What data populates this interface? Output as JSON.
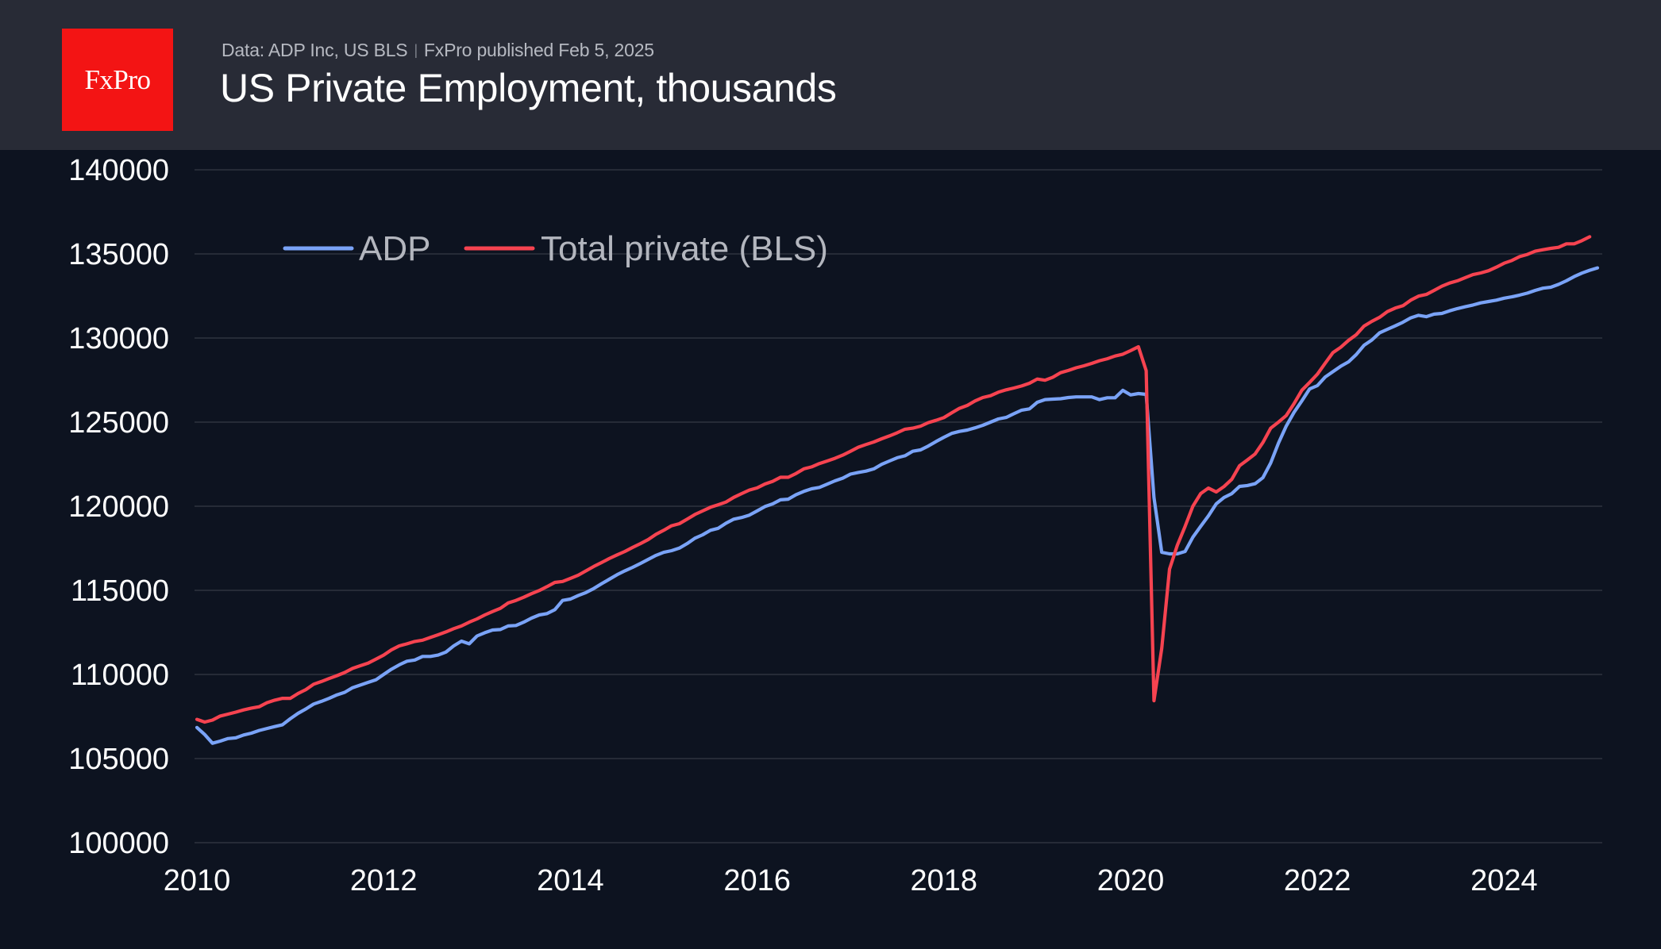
{
  "header": {
    "logo_text": "FxPro",
    "source": "Data: ADP Inc, US BLS",
    "separator": "|",
    "published": "FxPro published Feb 5, 2025",
    "title": "US Private Employment, thousands"
  },
  "colors": {
    "background": "#0d1320",
    "header_background": "#282b36",
    "logo_red": "#f31414",
    "adp": "#7aa3f7",
    "bls": "#f64350",
    "grid": "#262b37"
  },
  "chart_data": {
    "type": "line",
    "title": "US Private Employment, thousands",
    "xlabel": "",
    "ylabel": "",
    "x_start": "2010-01",
    "x_frequency": "monthly",
    "xlim": [
      2010.0,
      2025.1
    ],
    "ylim": [
      100000,
      140000
    ],
    "yticks": [
      100000,
      105000,
      110000,
      115000,
      120000,
      125000,
      130000,
      135000,
      140000
    ],
    "ytick_labels": [
      "100000",
      "105000",
      "110000",
      "115000",
      "120000",
      "125000",
      "130000",
      "135000",
      "140000"
    ],
    "xticks": [
      2010,
      2012,
      2014,
      2016,
      2018,
      2020,
      2022,
      2024
    ],
    "xtick_labels": [
      "2010",
      "2012",
      "2014",
      "2016",
      "2018",
      "2020",
      "2022",
      "2024"
    ],
    "grid": "horizontal",
    "legend_position": "top-left",
    "series": [
      {
        "name": "ADP",
        "color": "#7aa3f7",
        "values": [
          106850,
          106430,
          105910,
          106040,
          106190,
          106230,
          106400,
          106510,
          106670,
          106790,
          106900,
          107010,
          107370,
          107690,
          107950,
          108240,
          108400,
          108580,
          108790,
          108940,
          109210,
          109370,
          109530,
          109680,
          110000,
          110310,
          110570,
          110790,
          110860,
          111070,
          111070,
          111150,
          111330,
          111700,
          111980,
          111820,
          112290,
          112480,
          112640,
          112670,
          112880,
          112910,
          113110,
          113350,
          113540,
          113620,
          113850,
          114400,
          114480,
          114690,
          114870,
          115110,
          115390,
          115660,
          115930,
          116160,
          116370,
          116600,
          116840,
          117080,
          117260,
          117360,
          117510,
          117780,
          118100,
          118300,
          118570,
          118690,
          118990,
          119230,
          119330,
          119470,
          119720,
          119980,
          120140,
          120380,
          120420,
          120690,
          120880,
          121040,
          121120,
          121310,
          121510,
          121670,
          121910,
          122010,
          122090,
          122220,
          122490,
          122690,
          122880,
          123000,
          123270,
          123350,
          123580,
          123850,
          124100,
          124330,
          124450,
          124530,
          124660,
          124810,
          125000,
          125190,
          125280,
          125500,
          125710,
          125790,
          126180,
          126340,
          126370,
          126390,
          126460,
          126500,
          126500,
          126500,
          126340,
          126450,
          126450,
          126890,
          126620,
          126700,
          126650,
          120520,
          117260,
          117170,
          117170,
          117310,
          118160,
          118800,
          119430,
          120140,
          120520,
          120750,
          121180,
          121230,
          121340,
          121700,
          122570,
          123750,
          124770,
          125580,
          126260,
          126970,
          127170,
          127680,
          128000,
          128320,
          128580,
          129020,
          129570,
          129880,
          130310,
          130520,
          130720,
          130940,
          131200,
          131350,
          131270,
          131420,
          131460,
          131620,
          131750,
          131860,
          131960,
          132090,
          132170,
          132250,
          132370,
          132450,
          132550,
          132670,
          132830,
          132960,
          133020,
          133190,
          133400,
          133650,
          133860,
          134030,
          134170
        ]
      },
      {
        "name": "Total private (BLS)",
        "color": "#f64350",
        "values": [
          107330,
          107170,
          107290,
          107530,
          107640,
          107760,
          107890,
          108000,
          108080,
          108320,
          108470,
          108580,
          108580,
          108870,
          109100,
          109420,
          109580,
          109760,
          109930,
          110120,
          110360,
          110520,
          110670,
          110910,
          111150,
          111460,
          111700,
          111820,
          111960,
          112040,
          112200,
          112360,
          112530,
          112720,
          112880,
          113110,
          113300,
          113540,
          113740,
          113930,
          114250,
          114400,
          114590,
          114800,
          114990,
          115220,
          115470,
          115530,
          115710,
          115900,
          116160,
          116420,
          116650,
          116890,
          117110,
          117310,
          117550,
          117780,
          118020,
          118330,
          118570,
          118840,
          118960,
          119230,
          119510,
          119720,
          119940,
          120090,
          120250,
          120530,
          120750,
          120960,
          121090,
          121320,
          121480,
          121720,
          121720,
          121950,
          122220,
          122340,
          122540,
          122690,
          122850,
          123040,
          123270,
          123510,
          123670,
          123820,
          124010,
          124180,
          124370,
          124580,
          124640,
          124760,
          124970,
          125110,
          125270,
          125550,
          125820,
          125990,
          126260,
          126460,
          126570,
          126780,
          126920,
          127030,
          127150,
          127310,
          127560,
          127490,
          127670,
          127940,
          128070,
          128230,
          128350,
          128490,
          128650,
          128770,
          128930,
          129040,
          129250,
          129480,
          128060,
          108440,
          111550,
          116260,
          117680,
          118800,
          120000,
          120750,
          121080,
          120850,
          121170,
          121600,
          122410,
          122750,
          123110,
          123790,
          124640,
          125000,
          125390,
          126100,
          126890,
          127360,
          127850,
          128500,
          129130,
          129450,
          129860,
          130200,
          130710,
          130990,
          131230,
          131570,
          131780,
          131920,
          132250,
          132490,
          132590,
          132830,
          133080,
          133270,
          133400,
          133590,
          133770,
          133870,
          134000,
          134210,
          134450,
          134610,
          134840,
          134970,
          135160,
          135250,
          135330,
          135390,
          135600,
          135600,
          135790,
          136020
        ]
      }
    ]
  }
}
